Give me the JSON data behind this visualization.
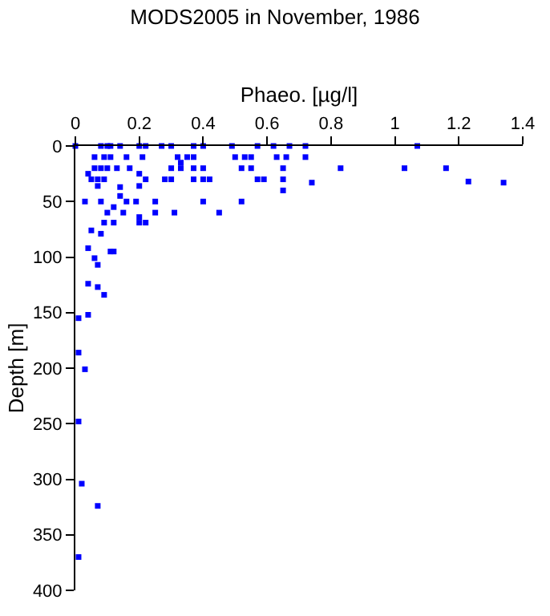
{
  "chart_data": {
    "type": "scatter",
    "title": "MODS2005 in November, 1986",
    "xlabel": "Phaeo. [µg/l]",
    "ylabel": "Depth [m]",
    "x": [
      0,
      0.08,
      0.1,
      0.11,
      0.14,
      0.2,
      0.22,
      0.27,
      0.3,
      0.37,
      0.4,
      0.49,
      0.57,
      0.62,
      0.67,
      0.72,
      1.07,
      0.06,
      0.09,
      0.11,
      0.16,
      0.21,
      0.32,
      0.35,
      0.37,
      0.5,
      0.53,
      0.55,
      0.63,
      0.66,
      0.72,
      0.33,
      0.06,
      0.08,
      0.1,
      0.13,
      0.17,
      0.3,
      0.33,
      0.37,
      0.4,
      0.52,
      0.55,
      0.65,
      0.83,
      1.03,
      1.16,
      0.04,
      0.2,
      0.05,
      0.07,
      0.09,
      0.22,
      0.28,
      0.3,
      0.37,
      0.4,
      0.42,
      0.57,
      0.59,
      0.65,
      0.74,
      1.23,
      1.34,
      0.07,
      0.2,
      0.65,
      0.14,
      0.14,
      0.03,
      0.08,
      0.16,
      0.19,
      0.25,
      0.4,
      0.52,
      0.12,
      0.1,
      0.15,
      0.25,
      0.31,
      0.45,
      0.2,
      0.09,
      0.12,
      0.2,
      0.22,
      0.05,
      0.08,
      0.04,
      0.11,
      0.12,
      0.06,
      0.07,
      0.04,
      0.07,
      0.09,
      0.01,
      0.04,
      0.01,
      0.03,
      0.01,
      0.02,
      0.07,
      0.01
    ],
    "values": [
      0,
      0,
      0,
      0,
      0,
      0,
      0,
      0,
      0,
      0,
      0,
      0,
      0,
      0,
      0,
      0,
      0,
      10,
      10,
      10,
      10,
      10,
      10,
      10,
      10,
      10,
      10,
      10,
      10,
      10,
      10,
      15,
      20,
      20,
      20,
      20,
      20,
      20,
      20,
      20,
      20,
      20,
      20,
      20,
      20,
      20,
      20,
      25,
      25,
      30,
      30,
      30,
      30,
      30,
      30,
      30,
      30,
      30,
      30,
      30,
      30,
      33,
      32,
      33,
      36,
      36,
      40,
      37,
      45,
      50,
      50,
      50,
      50,
      50,
      50,
      50,
      55,
      60,
      60,
      60,
      60,
      60,
      64,
      69,
      69,
      69,
      69,
      76,
      79,
      92,
      95,
      95,
      101,
      107,
      124,
      127,
      134,
      155,
      152,
      186,
      201,
      248,
      304,
      324,
      370
    ],
    "color": "#0000ff",
    "marker": "square",
    "xlim": [
      0,
      1.4
    ],
    "xticks": [
      0,
      0.2,
      0.4,
      0.6,
      0.8,
      1,
      1.2,
      1.4
    ],
    "ylim": [
      400,
      0
    ],
    "yticks": [
      0,
      50,
      100,
      150,
      200,
      250,
      300,
      350,
      400
    ]
  }
}
